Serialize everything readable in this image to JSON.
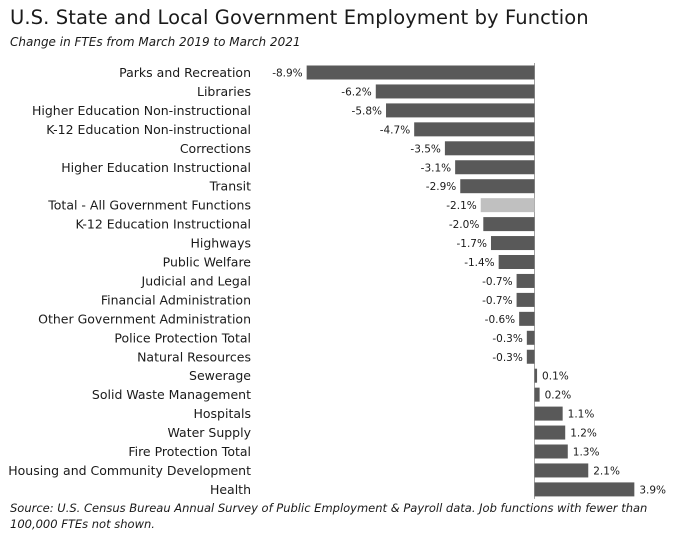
{
  "chart_data": {
    "type": "bar",
    "orientation": "horizontal",
    "title": "U.S. State and Local Government Employment by Function",
    "subtitle": "Change  in FTEs  from March 2019 to March 2021",
    "value_suffix": "%",
    "categories": [
      "Parks and Recreation",
      "Libraries",
      "Higher Education Non-instructional",
      "K-12 Education Non-instructional",
      "Corrections",
      "Higher Education Instructional",
      "Transit",
      "Total - All Government Functions",
      "K-12 Education Instructional",
      "Highways",
      "Public Welfare",
      "Judicial and Legal",
      "Financial Administration",
      "Other Government Administration",
      "Police Protection Total",
      "Natural Resources",
      "Sewerage",
      "Solid Waste Management",
      "Hospitals",
      "Water Supply",
      "Fire Protection Total",
      "Housing and Community Development",
      "Health"
    ],
    "values": [
      -8.9,
      -6.2,
      -5.8,
      -4.7,
      -3.5,
      -3.1,
      -2.9,
      -2.1,
      -2.0,
      -1.7,
      -1.4,
      -0.7,
      -0.7,
      -0.6,
      -0.3,
      -0.3,
      0.1,
      0.2,
      1.1,
      1.2,
      1.3,
      2.1,
      3.9
    ],
    "highlight_category": "Total - All Government Functions",
    "colors": {
      "bar": "#595959",
      "highlight": "#c0c0c0"
    },
    "source": "Source: U.S. Census Bureau Annual Survey of Public Employment & Payroll data. Job functions with fewer than 100,000 FTEs not shown."
  }
}
